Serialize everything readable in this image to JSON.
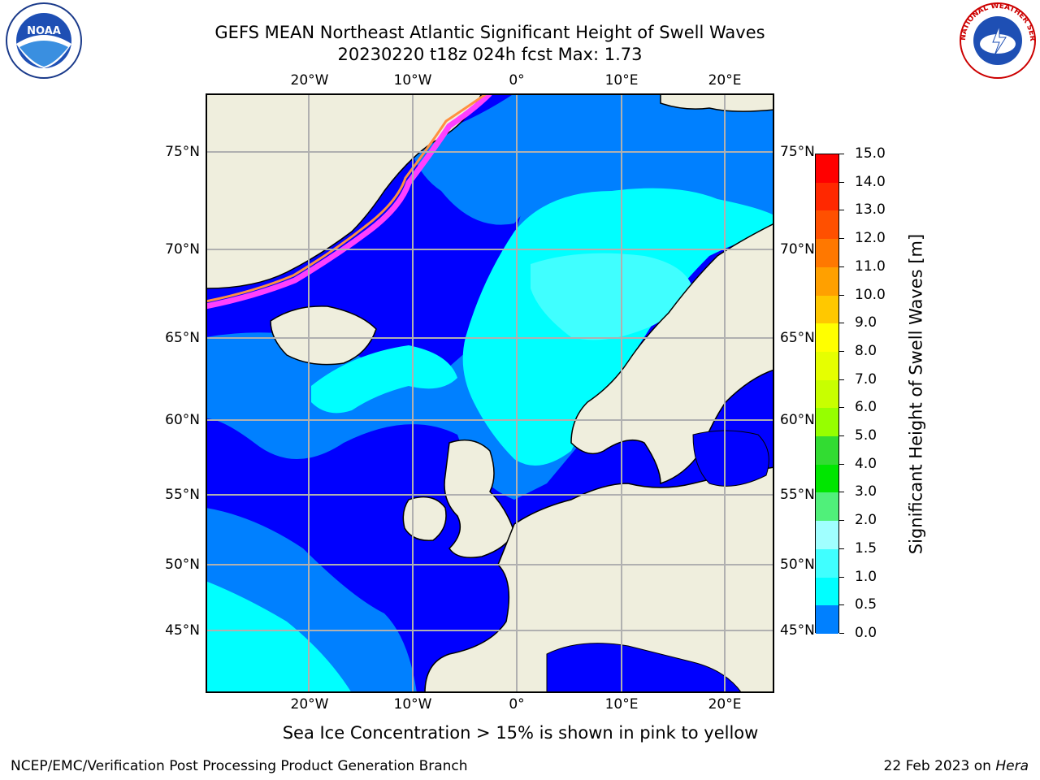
{
  "title_line1": "GEFS MEAN Northeast Atlantic Significant Height of Swell Waves",
  "title_line2": "20230220 t18z 024h fcst   Max: 1.73",
  "map": {
    "lon_ticks": [
      "20°W",
      "10°W",
      "0°",
      "10°E",
      "20°E"
    ],
    "lat_ticks": [
      "75°N",
      "70°N",
      "65°N",
      "60°N",
      "55°N",
      "50°N",
      "45°N"
    ],
    "colors": {
      "land": "#efeedd",
      "ocean_low": "#0000ff",
      "ocean_mid": "#0080ff",
      "ocean_high": "#00ffff",
      "ocean_highest": "#40ffff",
      "ice_pink": "#ff40ff",
      "ice_orange": "#ff9040",
      "ice_yellow": "#ffd040",
      "grid": "#b0b0b0",
      "coast": "#000000"
    }
  },
  "colorbar": {
    "title": "Significant Height of Swell Waves [m]",
    "labels": [
      "15.0",
      "14.0",
      "13.0",
      "12.0",
      "11.0",
      "10.0",
      "9.0",
      "8.0",
      "7.0",
      "6.0",
      "5.0",
      "4.0",
      "3.0",
      "2.0",
      "1.5",
      "1.0",
      "0.5",
      "0.0"
    ],
    "colors": [
      "#ff0000",
      "#ff2800",
      "#ff5000",
      "#ff7800",
      "#ffa000",
      "#ffc800",
      "#ffff00",
      "#e6ff00",
      "#c8ff00",
      "#96ff00",
      "#32dc32",
      "#00e600",
      "#50f07a",
      "#a0ffff",
      "#40ffff",
      "#00ffff",
      "#0080ff",
      "#0000ff"
    ]
  },
  "ice_note": "Sea Ice Concentration > 15% is shown in pink to yellow",
  "footer": {
    "left": "NCEP/EMC/Verification Post Processing Product Generation Branch",
    "right_date": "22 Feb 2023 on ",
    "right_host": "Hera"
  },
  "logos": {
    "noaa_text": "NOAA",
    "nws_text": "NATIONAL WEATHER SERVICE"
  }
}
